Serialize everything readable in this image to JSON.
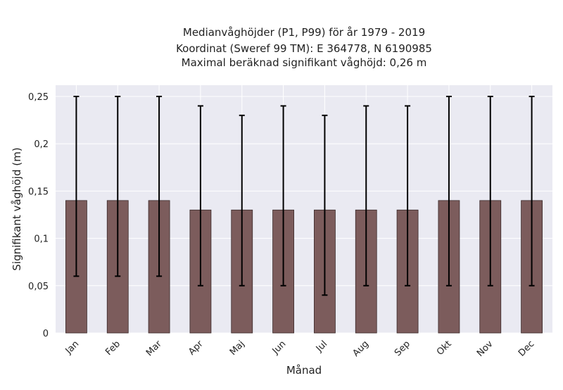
{
  "chart_data": {
    "type": "bar",
    "title_lines": [
      "Medianvåghöjder (P1, P99) för år 1979 - 2019",
      "Koordinat (Sweref 99 TM): E 364778, N 6190985",
      "Maximal beräknad signifikant våghöjd: 0,26 m"
    ],
    "xlabel": "Månad",
    "ylabel": "Signifikant våghöjd (m)",
    "ylim": [
      0,
      0.26
    ],
    "yticks": [
      0,
      0.05,
      0.1,
      0.15,
      0.2,
      0.25
    ],
    "ytick_labels": [
      "0",
      "0,05",
      "0,1",
      "0,15",
      "0,2",
      "0,25"
    ],
    "categories": [
      "Jan",
      "Feb",
      "Mar",
      "Apr",
      "Maj",
      "Jun",
      "Jul",
      "Aug",
      "Sep",
      "Okt",
      "Nov",
      "Dec"
    ],
    "values": [
      0.14,
      0.14,
      0.14,
      0.13,
      0.13,
      0.13,
      0.13,
      0.13,
      0.13,
      0.14,
      0.14,
      0.14
    ],
    "p1": [
      0.06,
      0.06,
      0.06,
      0.05,
      0.05,
      0.05,
      0.04,
      0.05,
      0.05,
      0.05,
      0.05,
      0.05
    ],
    "p99": [
      0.25,
      0.25,
      0.25,
      0.24,
      0.23,
      0.24,
      0.23,
      0.24,
      0.24,
      0.25,
      0.25,
      0.25
    ],
    "grid": true,
    "colors": {
      "bar": "#7c5c5c",
      "bar_edge": "#3a2a2a",
      "error_bar": "#000000",
      "plot_bg": "#eaeaf2",
      "grid": "#ffffff",
      "text": "#222222"
    }
  }
}
